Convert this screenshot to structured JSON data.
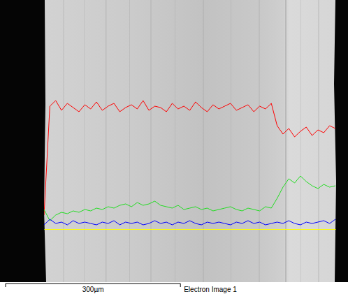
{
  "chart_data": {
    "type": "line",
    "caption": "Electron Image 1",
    "scale_bar": {
      "value": 300,
      "label": "300µm"
    },
    "xlim": [
      0,
      500
    ],
    "ylim": [
      0,
      100
    ],
    "tick_labels": false,
    "x": [
      0,
      10,
      20,
      30,
      40,
      50,
      60,
      70,
      80,
      90,
      100,
      110,
      120,
      130,
      140,
      150,
      160,
      170,
      180,
      190,
      200,
      210,
      220,
      230,
      240,
      250,
      260,
      270,
      280,
      290,
      300,
      310,
      320,
      330,
      340,
      350,
      360,
      370,
      380,
      390,
      400,
      410,
      420,
      430,
      440,
      450,
      460,
      470,
      480,
      490,
      500
    ],
    "series": [
      {
        "color": "#ff0000",
        "values": [
          10,
          88,
          92,
          85,
          90,
          87,
          84,
          89,
          86,
          91,
          85,
          88,
          90,
          84,
          87,
          89,
          86,
          92,
          85,
          88,
          87,
          84,
          90,
          86,
          88,
          85,
          91,
          87,
          84,
          89,
          86,
          88,
          90,
          85,
          87,
          89,
          84,
          88,
          86,
          90,
          74,
          68,
          72,
          66,
          70,
          73,
          67,
          71,
          69,
          74,
          72
        ]
      },
      {
        "color": "#22dd22",
        "values": [
          14,
          6,
          10,
          12,
          11,
          13,
          12,
          14,
          13,
          15,
          14,
          16,
          15,
          17,
          18,
          16,
          19,
          17,
          18,
          20,
          17,
          16,
          15,
          17,
          14,
          15,
          16,
          14,
          15,
          13,
          14,
          15,
          16,
          14,
          13,
          15,
          14,
          13,
          16,
          15,
          22,
          30,
          36,
          33,
          38,
          34,
          31,
          29,
          32,
          30,
          31
        ]
      },
      {
        "color": "#0000ff",
        "values": [
          3,
          7,
          4,
          5,
          3,
          6,
          4,
          5,
          4,
          3,
          5,
          4,
          6,
          3,
          5,
          4,
          5,
          3,
          4,
          6,
          4,
          5,
          3,
          5,
          4,
          6,
          4,
          3,
          5,
          4,
          5,
          4,
          3,
          5,
          4,
          6,
          4,
          5,
          3,
          4,
          5,
          4,
          6,
          4,
          3,
          5,
          4,
          5,
          6,
          4,
          7
        ]
      }
    ]
  }
}
